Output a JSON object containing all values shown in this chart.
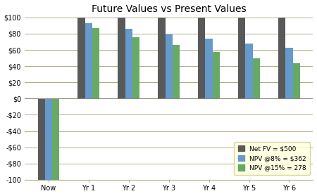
{
  "title": "Future Values vs Present Values",
  "categories": [
    "Now",
    "Yr 1",
    "Yr 2",
    "Yr 3",
    "Yr 4",
    "Yr 5",
    "Yr 6"
  ],
  "series": {
    "Net FV = $500": [
      -100,
      100,
      100,
      100,
      100,
      100,
      100
    ],
    "NPV @8% = $362": [
      -100,
      92.6,
      85.7,
      79.4,
      73.5,
      68.1,
      63.0
    ],
    "NPV @15% = 278": [
      -100,
      87.0,
      75.6,
      65.8,
      57.2,
      49.7,
      43.2
    ]
  },
  "colors": {
    "Net FV = $500": "#595959",
    "NPV @8% = $362": "#6699cc",
    "NPV @15% = 278": "#66aa66"
  },
  "ylim": [
    -100,
    100
  ],
  "yticks": [
    -100,
    -80,
    -60,
    -40,
    -20,
    0,
    20,
    40,
    60,
    80,
    100
  ],
  "ytick_labels": [
    "-100",
    "-$80",
    "-$60",
    "-$40",
    "-$20",
    "$0",
    "$20",
    "$40",
    "$60",
    "$80",
    "$100"
  ],
  "legend_labels": [
    "Net FV = $500",
    "NPV @8% = $362",
    "NPV @15% = 278"
  ],
  "legend_bg": "#ffffdd",
  "grid_color": "#b0aa80",
  "background_color": "#ffffff",
  "bar_width": 0.18,
  "title_fontsize": 10,
  "tick_fontsize": 7
}
